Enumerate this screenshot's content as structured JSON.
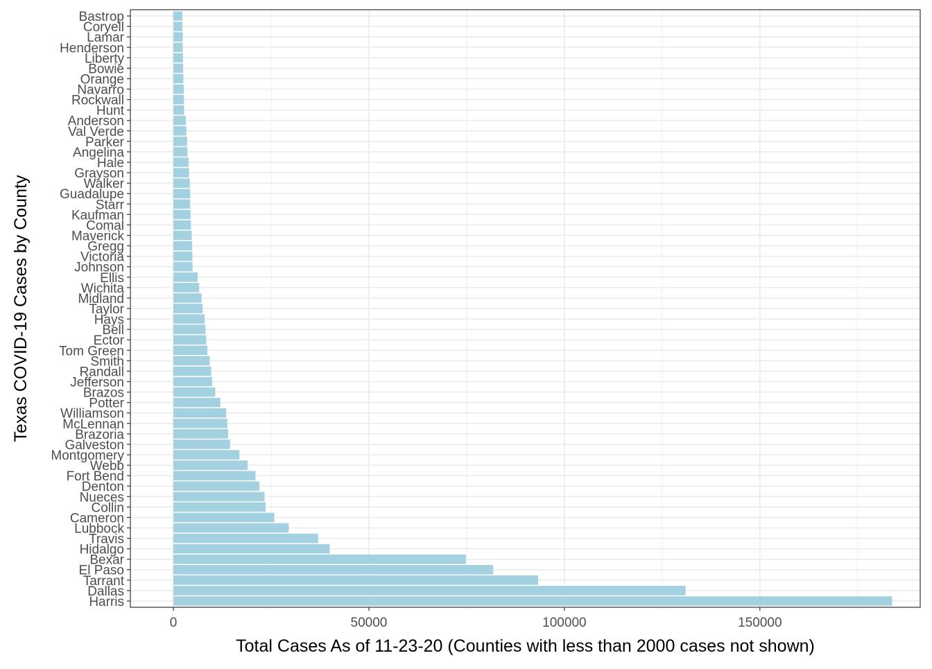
{
  "chart_data": {
    "type": "bar",
    "orientation": "horizontal",
    "title": "",
    "xlabel": "Total Cases As of 11-23-20 (Counties with less than 2000 cases not shown)",
    "ylabel": "Texas COVID-19 Cases by County",
    "xlim": [
      -11000,
      191000
    ],
    "x_ticks": [
      0,
      50000,
      100000,
      150000
    ],
    "x_tick_labels": [
      "0",
      "50000",
      "100000",
      "150000"
    ],
    "grid": true,
    "legend": "none",
    "bar_color": "#a3d1e0",
    "categories": [
      "Bastrop",
      "Coryell",
      "Lamar",
      "Henderson",
      "Liberty",
      "Bowie",
      "Orange",
      "Navarro",
      "Rockwall",
      "Hunt",
      "Anderson",
      "Val Verde",
      "Parker",
      "Angelina",
      "Hale",
      "Grayson",
      "Walker",
      "Guadalupe",
      "Starr",
      "Kaufman",
      "Comal",
      "Maverick",
      "Gregg",
      "Victoria",
      "Johnson",
      "Ellis",
      "Wichita",
      "Midland",
      "Taylor",
      "Hays",
      "Bell",
      "Ector",
      "Tom Green",
      "Smith",
      "Randall",
      "Jefferson",
      "Brazos",
      "Potter",
      "Williamson",
      "McLennan",
      "Brazoria",
      "Galveston",
      "Montgomery",
      "Webb",
      "Fort Bend",
      "Denton",
      "Nueces",
      "Collin",
      "Cameron",
      "Lubbock",
      "Travis",
      "Hidalgo",
      "Bexar",
      "El Paso",
      "Tarrant",
      "Dallas",
      "Harris"
    ],
    "values": [
      2300,
      2300,
      2400,
      2400,
      2450,
      2500,
      2550,
      2650,
      2700,
      2750,
      3200,
      3300,
      3500,
      3600,
      3900,
      4000,
      4200,
      4300,
      4300,
      4400,
      4500,
      4700,
      4800,
      4850,
      4900,
      6200,
      6600,
      7200,
      7500,
      8000,
      8200,
      8400,
      8700,
      9300,
      9700,
      9900,
      10700,
      12000,
      13500,
      13800,
      14000,
      14500,
      16900,
      19000,
      21000,
      22000,
      23300,
      23600,
      25800,
      29500,
      37000,
      40000,
      74800,
      81800,
      93300,
      131000,
      183800
    ]
  }
}
